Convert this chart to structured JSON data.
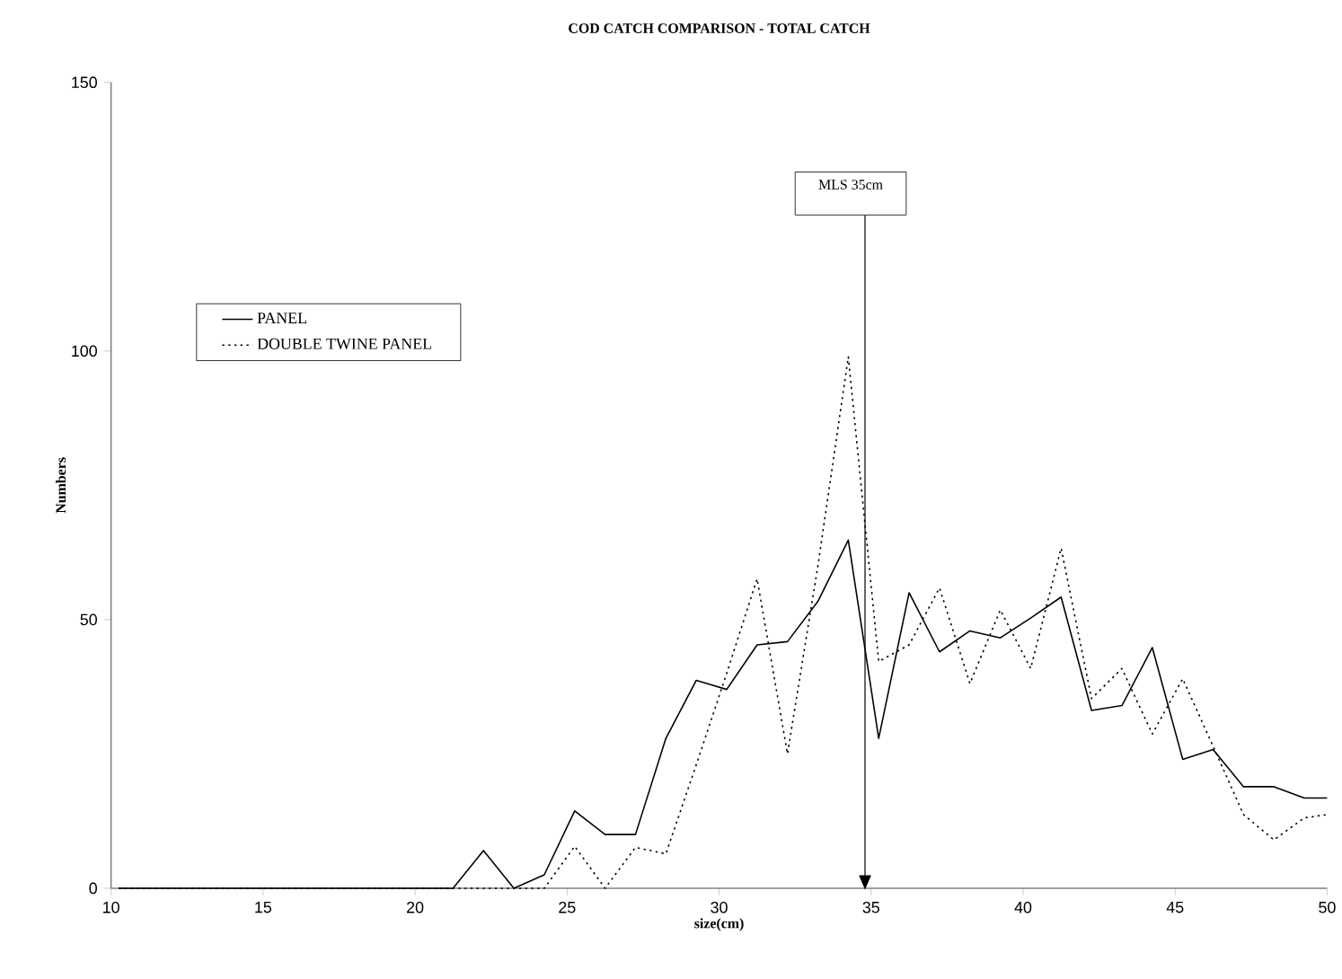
{
  "chart_data": {
    "type": "line",
    "title": "COD CATCH COMPARISON - TOTAL CATCH",
    "xlabel": "size(cm)",
    "ylabel": "Numbers",
    "x": [
      10.25,
      11.25,
      12.25,
      13.25,
      14.25,
      15.25,
      16.25,
      17.25,
      18.25,
      19.25,
      20.25,
      21.25,
      22.25,
      23.25,
      24.25,
      25.25,
      26.25,
      27.25,
      28.25,
      29.25,
      30.25,
      31.25,
      32.25,
      33.25,
      34.25,
      35.25,
      36.25,
      37.25,
      38.25,
      39.25,
      40.25,
      41.25,
      42.25,
      43.25,
      44.25,
      45.25,
      46.25,
      47.25,
      48.25,
      49.25,
      50
    ],
    "series": [
      {
        "name": "PANEL",
        "color": "#000000",
        "line_style": "solid",
        "values": [
          0,
          0,
          0,
          0,
          0,
          0,
          0,
          0,
          0,
          0,
          0,
          0,
          7,
          0,
          2.5,
          14.4,
          10,
          10,
          27.9,
          38.7,
          37,
          45.3,
          45.9,
          53.4,
          64.8,
          27.9,
          55,
          44,
          47.9,
          46.6,
          50.3,
          54.2,
          33.1,
          34,
          44.8,
          24,
          25.8,
          18.9,
          18.9,
          16.8,
          16.8
        ]
      },
      {
        "name": "DOUBLE TWINE PANEL",
        "color": "#000000",
        "line_style": "dotted",
        "values": [
          0,
          0,
          0,
          0,
          0,
          0,
          0,
          0,
          0,
          0,
          0,
          0,
          0,
          0,
          0,
          7.8,
          0,
          7.6,
          6.4,
          23,
          40,
          57.6,
          25,
          60,
          98.9,
          42.2,
          45.3,
          55.9,
          38.1,
          51.8,
          40.9,
          63.3,
          35.3,
          40.9,
          28.7,
          39,
          26.4,
          13.7,
          9,
          13.1,
          13.7
        ]
      }
    ],
    "xlim": [
      10,
      50
    ],
    "xticks": [
      10,
      15,
      20,
      25,
      30,
      35,
      40,
      45,
      50
    ],
    "ylim": [
      0,
      150
    ],
    "yticks": [
      0,
      50,
      100,
      150
    ],
    "ref_lines": [
      {
        "axis": "x",
        "value": 34.8,
        "label": "MLS 35cm"
      }
    ],
    "grid": false,
    "legend": "left",
    "marker": "none"
  }
}
